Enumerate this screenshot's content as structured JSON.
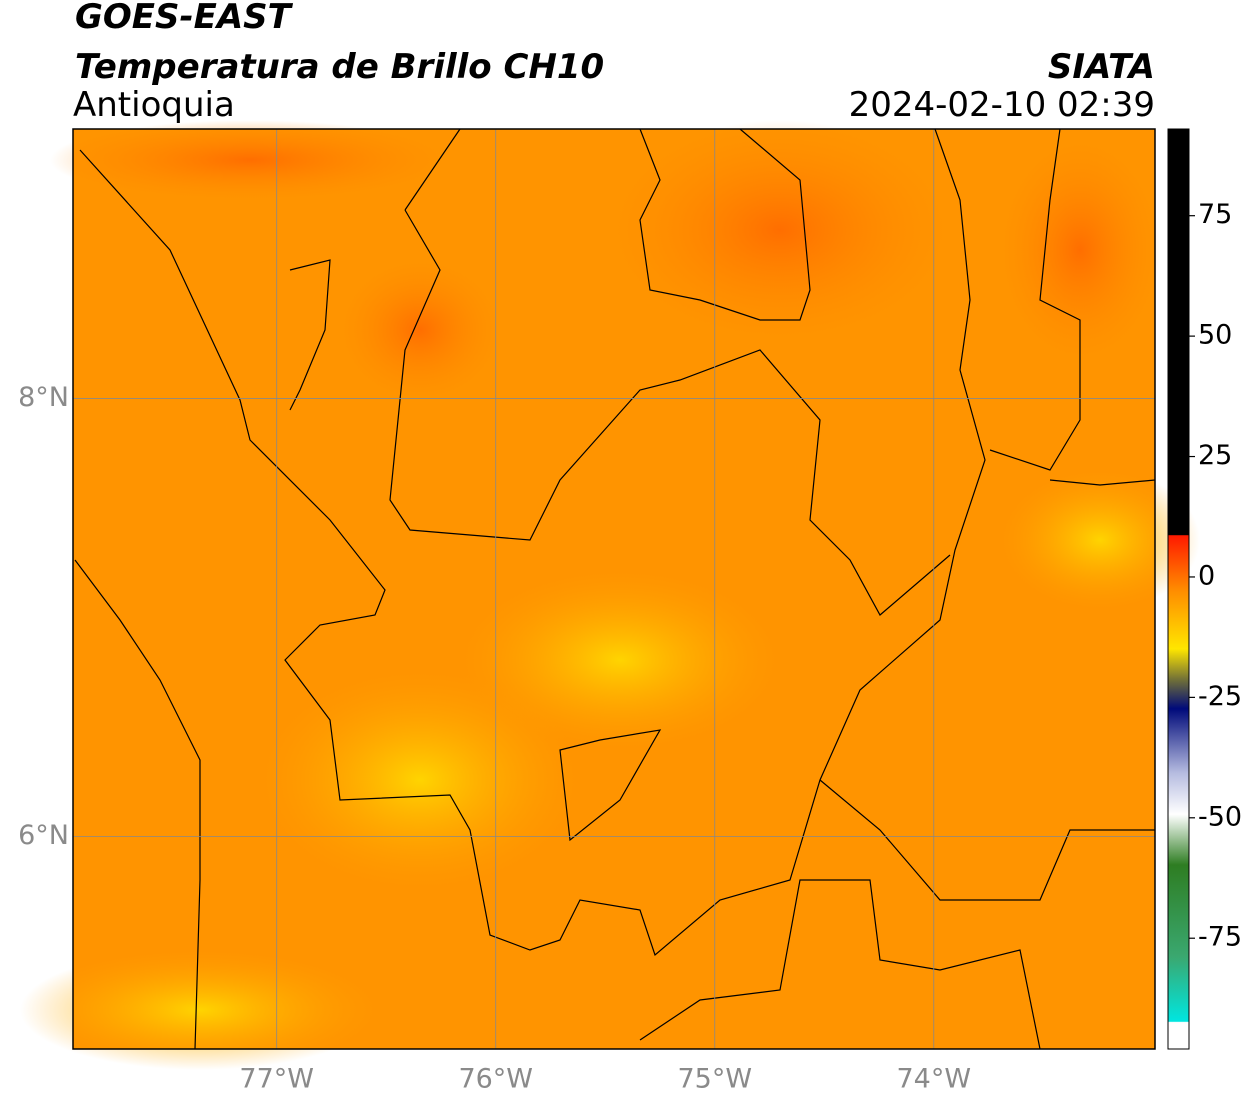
{
  "header": {
    "title": "GOES-EAST",
    "subtitle": "Temperatura de Brillo CH10",
    "region": "Antioquia",
    "source": "SIATA",
    "datetime": "2024-02-10 02:39"
  },
  "map": {
    "xlim": [
      -77.93,
      -72.99
    ],
    "ylim": [
      5.03,
      9.23
    ],
    "xticks": [
      {
        "value": -77,
        "label": "77°W"
      },
      {
        "value": -76,
        "label": "76°W"
      },
      {
        "value": -75,
        "label": "75°W"
      },
      {
        "value": -74,
        "label": "74°W"
      }
    ],
    "yticks": [
      {
        "value": 8,
        "label": "8°N"
      },
      {
        "value": 6,
        "label": "6°N"
      }
    ],
    "grid": true
  },
  "colorbar": {
    "lim": [
      -98,
      93
    ],
    "ticks": [
      75,
      50,
      25,
      0,
      -25,
      -50,
      -75
    ]
  }
}
